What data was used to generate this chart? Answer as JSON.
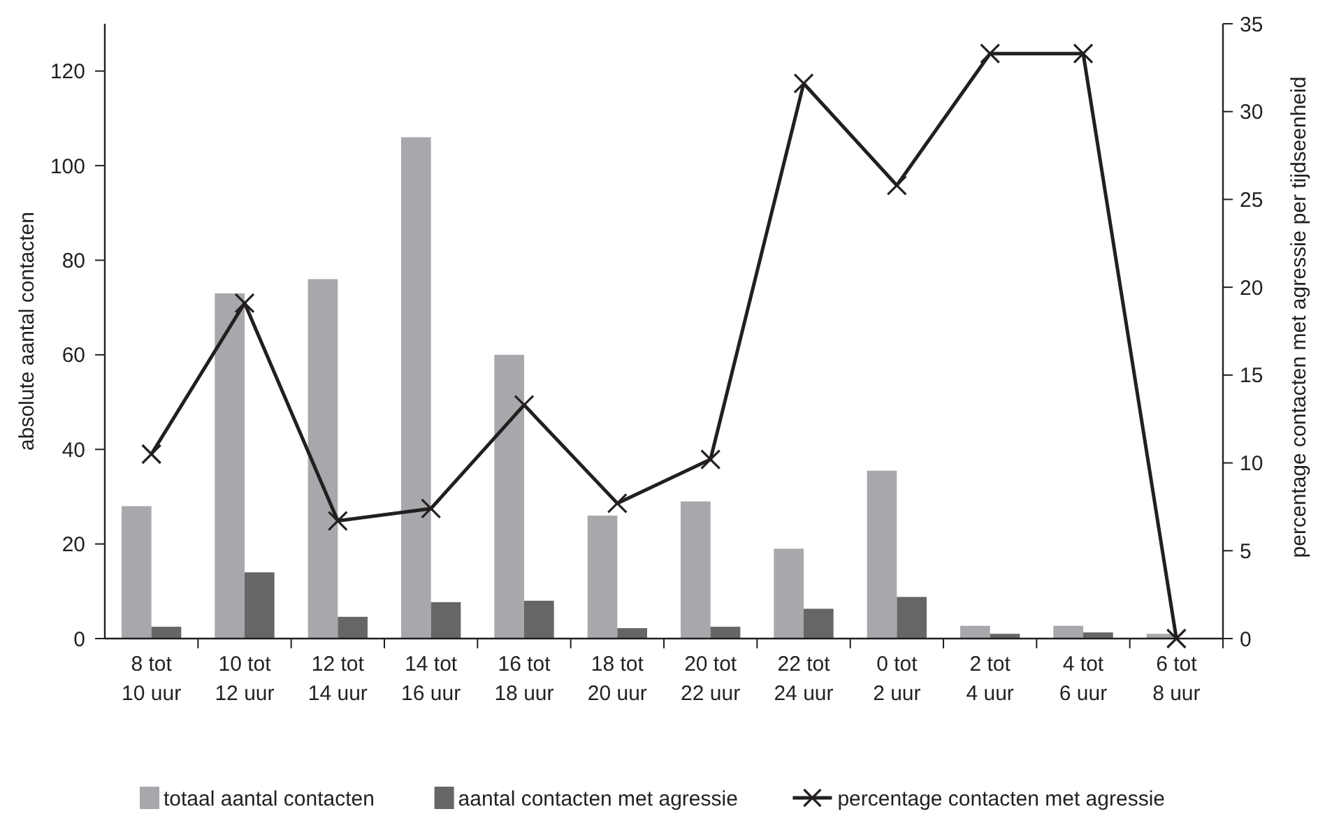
{
  "chart_data": {
    "type": "bar",
    "ylabel": "absolute aantal contacten",
    "y2label": "percentage contacten met agressie per tijdseenheid",
    "categories": [
      "8 tot 10 uur",
      "10 tot 12 uur",
      "12 tot 14 uur",
      "14 tot 16 uur",
      "16 tot 18 uur",
      "18 tot 20 uur",
      "20 tot 22 uur",
      "22 tot 24 uur",
      "0 tot 2 uur",
      "2 tot 4 uur",
      "4 tot 6 uur",
      "6 tot 8 uur"
    ],
    "series": [
      {
        "name": "totaal aantal contacten",
        "color": "#a7a8ab",
        "values": [
          28,
          73,
          76,
          106,
          60,
          26,
          29,
          19,
          35.5,
          2.7,
          2.7,
          1
        ]
      },
      {
        "name": "aantal contacten met agressie",
        "color": "#666666",
        "values": [
          2.5,
          14,
          4.6,
          7.7,
          8,
          2.2,
          2.5,
          6.3,
          8.8,
          1,
          1.3,
          0
        ]
      },
      {
        "name": "percentage contacten met agressie",
        "type": "line",
        "axis": "y2",
        "color": "#231f20",
        "marker": "cross",
        "values": [
          10.5,
          19.1,
          6.7,
          7.4,
          13.3,
          7.7,
          10.2,
          31.6,
          25.8,
          33.3,
          33.3,
          0
        ]
      }
    ],
    "ylim": [
      0,
      130
    ],
    "yticks": [
      0,
      20,
      40,
      60,
      80,
      100,
      120
    ],
    "y2lim": [
      0,
      35
    ],
    "y2ticks": [
      0,
      5,
      10,
      15,
      20,
      25,
      30,
      35
    ],
    "grid": false,
    "legend": "bottom"
  }
}
